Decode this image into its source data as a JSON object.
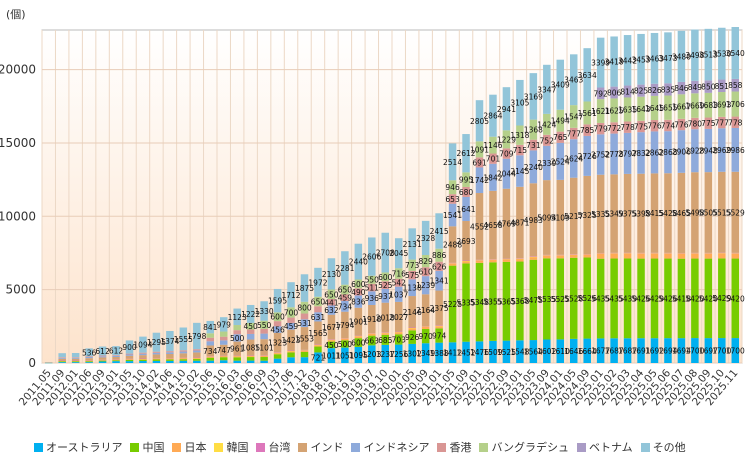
{
  "chart_data": {
    "type": "bar",
    "stacked": true,
    "unit_label": "(個)",
    "xlabel": "",
    "ylabel": "(個)",
    "ylim": [
      0,
      22700
    ],
    "yticks": [
      0,
      5000,
      10000,
      15000,
      20000
    ],
    "yticks_labels": [
      "0",
      "5000",
      "10000",
      "15000",
      "20000"
    ],
    "grid": true,
    "legend_position": "bottom",
    "categories": [
      "2011.05",
      "2011.09",
      "2012.01",
      "2012.06",
      "2012.09",
      "2013.01",
      "2013.05",
      "2013.10",
      "2014.02",
      "2014.06",
      "2014.10",
      "2015.02",
      "2015.06",
      "2015.10",
      "2016.03",
      "2016.06",
      "2016.09",
      "2017.03",
      "2017.06",
      "2017.12",
      "2018.03",
      "2018.07",
      "2018.11",
      "2019.03",
      "2019.07",
      "2019.10",
      "2020.01",
      "2020.05",
      "2020.09",
      "2021.01",
      "2021.05",
      "2021.09",
      "2022.01",
      "2022.05",
      "2022.09",
      "2023.01",
      "2023.05",
      "2023.09",
      "2024.01",
      "2024.05",
      "2024.09",
      "2025.01",
      "2025.02",
      "2025.03",
      "2025.04",
      "2025.05",
      "2025.06",
      "2025.07",
      "2025.08",
      "2025.09",
      "2025.10",
      "2025.11"
    ],
    "series": [
      {
        "name": "オーストラリア",
        "color": "#00b0f0",
        "values": [
          20,
          60,
          60,
          60,
          101,
          128,
          130,
          135,
          140,
          143,
          150,
          155,
          160,
          187,
          160,
          165,
          158,
          298,
          389,
          397,
          721,
          1011,
          1051,
          1095,
          1203,
          1237,
          1256,
          1302,
          1349,
          1388,
          1412,
          1452,
          1476,
          1509,
          1525,
          1548,
          1564,
          1602,
          1610,
          1646,
          1664,
          1677,
          1687,
          1687,
          1691,
          1692,
          1694,
          1694,
          1700,
          1697,
          1700,
          1700
        ]
      },
      {
        "name": "中国",
        "color": "#77cc00",
        "values": [
          10,
          60,
          60,
          60,
          60,
          60,
          80,
          90,
          100,
          105,
          110,
          115,
          200,
          210,
          230,
          240,
          250,
          300,
          330,
          360,
          400,
          450,
          500,
          600,
          663,
          685,
          703,
          926,
          970,
          974,
          5225,
          5335,
          5348,
          5355,
          5365,
          5368,
          5475,
          5535,
          5525,
          5528,
          5526,
          5435,
          5435,
          5439,
          5426,
          5429,
          5426,
          5418,
          5420,
          5420,
          5429,
          5420
        ]
      },
      {
        "name": "日本",
        "color": "#ffaa55",
        "values": [
          5,
          30,
          30,
          40,
          40,
          40,
          50,
          50,
          55,
          55,
          60,
          60,
          60,
          60,
          70,
          70,
          75,
          80,
          85,
          90,
          95,
          100,
          100,
          110,
          110,
          110,
          120,
          130,
          140,
          141,
          141,
          149,
          161,
          165,
          170,
          175,
          180,
          185,
          190,
          190,
          190,
          338,
          339,
          339,
          338,
          340,
          337,
          338,
          338,
          338,
          339,
          337
        ]
      },
      {
        "name": "韓国",
        "color": "#ffdd44",
        "values": [
          0,
          10,
          10,
          10,
          10,
          10,
          15,
          15,
          15,
          15,
          20,
          20,
          20,
          20,
          20,
          20,
          20,
          25,
          25,
          25,
          25,
          25,
          25,
          30,
          30,
          30,
          30,
          30,
          30,
          30,
          20,
          20,
          20,
          20,
          20,
          20,
          20,
          20,
          20,
          20,
          20,
          20,
          20,
          20,
          20,
          20,
          20,
          20,
          20,
          20,
          20,
          20
        ]
      },
      {
        "name": "台湾",
        "color": "#dd77bb",
        "values": [
          0,
          10,
          10,
          10,
          10,
          10,
          15,
          15,
          15,
          15,
          20,
          20,
          20,
          20,
          20,
          20,
          20,
          25,
          25,
          25,
          25,
          25,
          25,
          30,
          30,
          30,
          30,
          30,
          30,
          30,
          30,
          30,
          30,
          30,
          30,
          30,
          30,
          30,
          30,
          30,
          30,
          30,
          30,
          30,
          30,
          30,
          30,
          30,
          30,
          30,
          30,
          30
        ]
      },
      {
        "name": "インド",
        "color": "#d4a373",
        "values": [
          10,
          120,
          120,
          150,
          160,
          160,
          200,
          230,
          260,
          280,
          300,
          350,
          734,
          747,
          961,
          1085,
          1101,
          1323,
          1423,
          1553,
          1565,
          1677,
          1794,
          1901,
          1918,
          2018,
          2027,
          2146,
          2164,
          2375,
          2488,
          2693,
          4552,
          4658,
          4769,
          4871,
          4983,
          5094,
          5109,
          5217,
          5325,
          5335,
          5349,
          5375,
          5398,
          5415,
          5428,
          5465,
          5498,
          5505,
          5515,
          5529
        ]
      },
      {
        "name": "インドネシア",
        "color": "#8eaadb",
        "values": [
          0,
          60,
          60,
          80,
          80,
          80,
          90,
          100,
          110,
          115,
          120,
          130,
          290,
          300,
          500,
          380,
          380,
          456,
          459,
          531,
          631,
          632,
          734,
          836,
          936,
          937,
          1037,
          1138,
          1239,
          1341,
          1541,
          1641,
          1742,
          1842,
          2044,
          2145,
          2240,
          2339,
          2524,
          2624,
          2726,
          2752,
          2778,
          2797,
          2832,
          2862,
          2868,
          2906,
          2928,
          2948,
          2969,
          2986
        ]
      },
      {
        "name": "香港",
        "color": "#d99694",
        "values": [
          0,
          40,
          40,
          50,
          50,
          50,
          60,
          70,
          75,
          80,
          85,
          90,
          241,
          250,
          277,
          304,
          325,
          346,
          360,
          392,
          405,
          441,
          459,
          490,
          511,
          525,
          542,
          575,
          610,
          626,
          653,
          680,
          691,
          701,
          709,
          715,
          731,
          752,
          765,
          777,
          785,
          779,
          772,
          778,
          775,
          776,
          774,
          776,
          780,
          775,
          777,
          778
        ]
      },
      {
        "name": "バングラデシュ",
        "color": "#b5d08a",
        "values": [
          0,
          0,
          0,
          0,
          0,
          0,
          0,
          0,
          0,
          0,
          0,
          0,
          300,
          350,
          350,
          450,
          550,
          600,
          700,
          800,
          650,
          650,
          650,
          600,
          550,
          600,
          716,
          773,
          829,
          886,
          946,
          995,
          1091,
          1146,
          1229,
          1318,
          1368,
          1424,
          1494,
          1547,
          1561,
          1621,
          1625,
          1635,
          1643,
          1645,
          1655,
          1667,
          1669,
          1683,
          1693,
          1706
        ]
      },
      {
        "name": "ベトナム",
        "color": "#a99bc5",
        "values": [
          0,
          0,
          0,
          0,
          0,
          0,
          0,
          0,
          0,
          0,
          0,
          0,
          0,
          0,
          0,
          0,
          0,
          0,
          0,
          0,
          0,
          0,
          0,
          0,
          0,
          0,
          0,
          0,
          0,
          0,
          0,
          0,
          0,
          0,
          0,
          0,
          0,
          0,
          0,
          0,
          0,
          792,
          806,
          814,
          825,
          826,
          835,
          846,
          849,
          850,
          851,
          858
        ]
      },
      {
        "name": "その他",
        "color": "#92c5d9",
        "values": [
          10,
          279,
          291,
          536,
          612,
          612,
          900,
          1094,
          1295,
          1374,
          1555,
          1798,
          841,
          979,
          1123,
          1222,
          1330,
          1595,
          1712,
          1875,
          1972,
          2130,
          2281,
          2440,
          2606,
          2708,
          2045,
          2131,
          2328,
          2415,
          2514,
          2612,
          2805,
          2864,
          2941,
          3105,
          3169,
          3347,
          3409,
          3463,
          3634,
          3399,
          3418,
          3442,
          3453,
          3463,
          3473,
          3480,
          3498,
          3513,
          3530,
          3540
        ]
      }
    ]
  }
}
